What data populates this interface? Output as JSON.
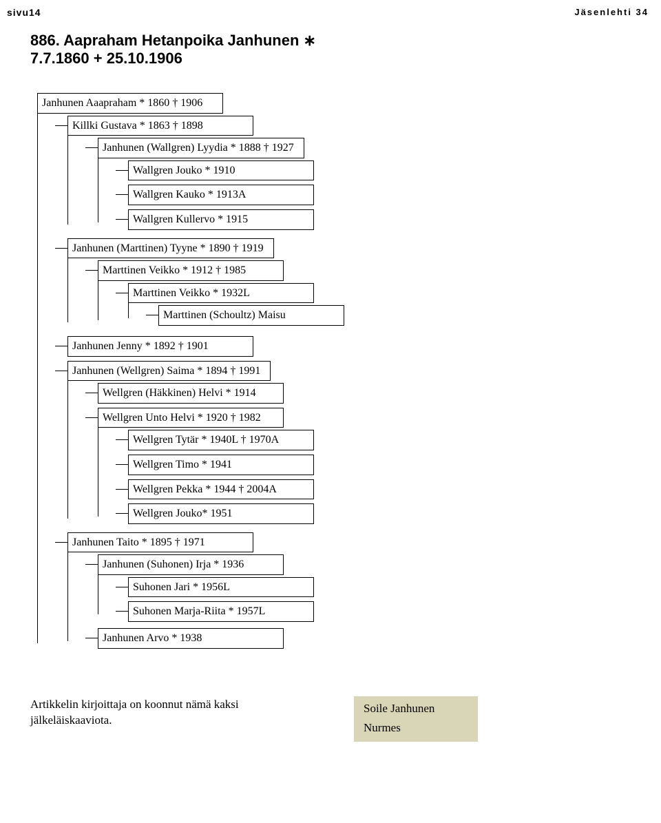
{
  "header": {
    "left": "sivu14",
    "right": "Jäsenlehti 34"
  },
  "title": {
    "line1": "886. Aapraham Hetanpoika Janhunen  ∗",
    "line2": "7.7.1860  + 25.10.1906"
  },
  "tree": {
    "n0": "Janhunen Aaapraham * 1860 † 1906",
    "n1": "Killki Gustava * 1863 † 1898",
    "n2": "Janhunen (Wallgren) Lyydia * 1888 † 1927",
    "n3": "Wallgren Jouko * 1910",
    "n4": "Wallgren Kauko * 1913A",
    "n5": "Wallgren Kullervo * 1915",
    "n6": "Janhunen (Marttinen) Tyyne * 1890 † 1919",
    "n7": "Marttinen Veikko * 1912 † 1985",
    "n8": "Marttinen Veikko * 1932L",
    "n9": "Marttinen (Schoultz) Maisu",
    "n10": "Janhunen Jenny * 1892 † 1901",
    "n11": "Janhunen (Wellgren) Saima * 1894 † 1991",
    "n12": "Wellgren (Häkkinen) Helvi * 1914",
    "n13": "Wellgren Unto Helvi * 1920 † 1982",
    "n14": "Wellgren Tytär * 1940L † 1970A",
    "n15": "Wellgren Timo * 1941",
    "n16": "Wellgren Pekka * 1944 † 2004A",
    "n17": "Wellgren Jouko* 1951",
    "n18": "Janhunen Taito * 1895 † 1971",
    "n19": "Janhunen (Suhonen) Irja * 1936",
    "n20": "Suhonen Jari * 1956L",
    "n21": "Suhonen Marja-Riita * 1957L",
    "n22": "Janhunen Arvo * 1938"
  },
  "footer": {
    "note": "Artikkelin kirjoittaja on koonnut nämä kaksi jälkeläiskaaviota.",
    "author_name": "Soile Janhunen",
    "author_place": "Nurmes"
  }
}
